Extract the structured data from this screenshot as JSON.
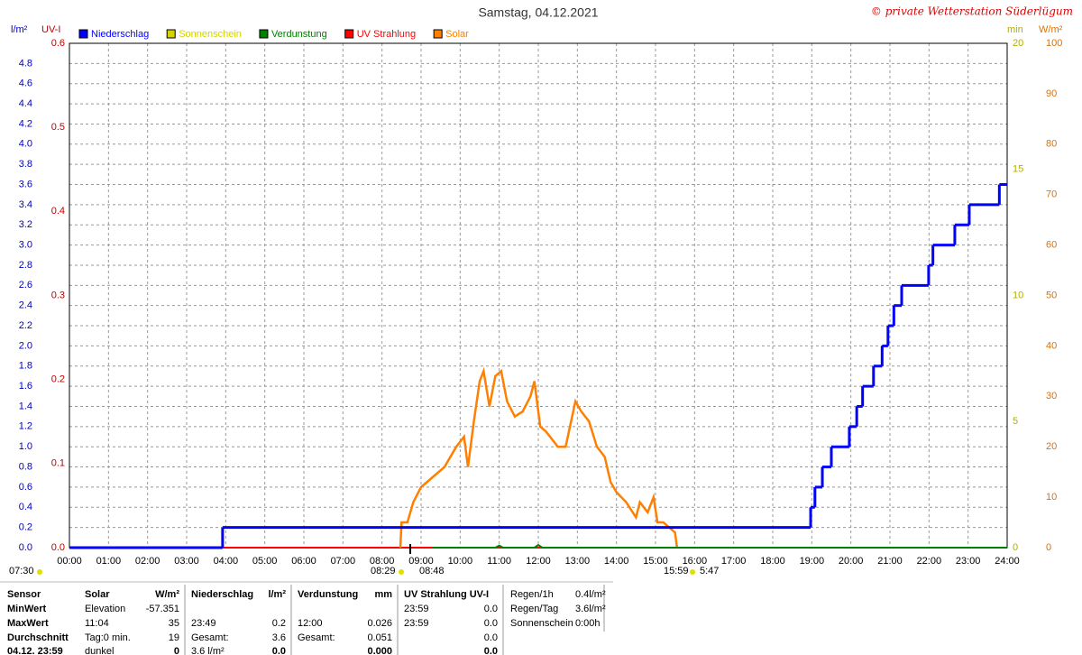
{
  "chart_data": {
    "type": "line",
    "title": "Samstag, 04.12.2021",
    "copyright": "© private Wetterstation Süderlügum",
    "xlim": [
      0,
      24
    ],
    "xticks": [
      {
        "value": 0,
        "label": "00:00"
      },
      {
        "value": 1,
        "label": "01:00"
      },
      {
        "value": 2,
        "label": "02:00"
      },
      {
        "value": 3,
        "label": "03:00"
      },
      {
        "value": 4,
        "label": "04:00"
      },
      {
        "value": 5,
        "label": "05:00"
      },
      {
        "value": 6,
        "label": "06:00"
      },
      {
        "value": 7,
        "label": "07:00"
      },
      {
        "value": 8,
        "label": "08:00"
      },
      {
        "value": 9,
        "label": "09:00"
      },
      {
        "value": 10,
        "label": "10:00"
      },
      {
        "value": 11,
        "label": "11:00"
      },
      {
        "value": 12,
        "label": "12:00"
      },
      {
        "value": 13,
        "label": "13:00"
      },
      {
        "value": 14,
        "label": "14:00"
      },
      {
        "value": 15,
        "label": "15:00"
      },
      {
        "value": 16,
        "label": "16:00"
      },
      {
        "value": 17,
        "label": "17:00"
      },
      {
        "value": 18,
        "label": "18:00"
      },
      {
        "value": 19,
        "label": "19:00"
      },
      {
        "value": 20,
        "label": "20:00"
      },
      {
        "value": 21,
        "label": "21:00"
      },
      {
        "value": 22,
        "label": "22:00"
      },
      {
        "value": 23,
        "label": "23:00"
      },
      {
        "value": 24,
        "label": "24:00"
      }
    ],
    "ylabel": "l/m²",
    "ylim": [
      0,
      5
    ],
    "yticks": [
      {
        "value": 0,
        "label": "0.0"
      },
      {
        "value": 0.2,
        "label": "0.2"
      },
      {
        "value": 0.4,
        "label": "0.4"
      },
      {
        "value": 0.6,
        "label": "0.6"
      },
      {
        "value": 0.8,
        "label": "0.8"
      },
      {
        "value": 1,
        "label": "1.0"
      },
      {
        "value": 1.2,
        "label": "1.2"
      },
      {
        "value": 1.4,
        "label": "1.4"
      },
      {
        "value": 1.6,
        "label": "1.6"
      },
      {
        "value": 1.8,
        "label": "1.8"
      },
      {
        "value": 2,
        "label": "2.0"
      },
      {
        "value": 2.2,
        "label": "2.2"
      },
      {
        "value": 2.4,
        "label": "2.4"
      },
      {
        "value": 2.6,
        "label": "2.6"
      },
      {
        "value": 2.8,
        "label": "2.8"
      },
      {
        "value": 3,
        "label": "3.0"
      },
      {
        "value": 3.2,
        "label": "3.2"
      },
      {
        "value": 3.4,
        "label": "3.4"
      },
      {
        "value": 3.6,
        "label": "3.6"
      },
      {
        "value": 3.8,
        "label": "3.8"
      },
      {
        "value": 4,
        "label": "4.0"
      },
      {
        "value": 4.2,
        "label": "4.2"
      },
      {
        "value": 4.4,
        "label": "4.4"
      },
      {
        "value": 4.6,
        "label": "4.6"
      },
      {
        "value": 4.8,
        "label": "4.8"
      }
    ],
    "uvlabel": "UV-I",
    "uvlim": [
      0,
      0.6
    ],
    "uvticks": [
      {
        "value": 0,
        "label": "0.0"
      },
      {
        "value": 0.1,
        "label": "0.1"
      },
      {
        "value": 0.2,
        "label": "0.2"
      },
      {
        "value": 0.3,
        "label": "0.3"
      },
      {
        "value": 0.4,
        "label": "0.4"
      },
      {
        "value": 0.5,
        "label": "0.5"
      },
      {
        "value": 0.6,
        "label": "0.6"
      }
    ],
    "minlabel": "min",
    "minlim": [
      0,
      20
    ],
    "minticks": [
      0,
      5,
      10,
      15,
      20
    ],
    "y2label": "W/m²",
    "y2lim": [
      0,
      100
    ],
    "y2ticks": [
      0,
      10,
      20,
      30,
      40,
      50,
      60,
      70,
      80,
      90,
      100
    ],
    "grid": true,
    "series": [
      {
        "name": "Niederschlag",
        "color": "#0000ff",
        "axis": "y",
        "step": true,
        "x": [
          0,
          3.92,
          18.97,
          19.08,
          19.27,
          19.5,
          19.96,
          20.15,
          20.3,
          20.58,
          20.8,
          20.95,
          21.1,
          21.3,
          21.99,
          22.1,
          22.66,
          23.03,
          23.8,
          24
        ],
        "values": [
          0,
          0.2,
          0.4,
          0.6,
          0.8,
          1.0,
          1.2,
          1.4,
          1.6,
          1.8,
          2.0,
          2.2,
          2.4,
          2.6,
          2.8,
          3.0,
          3.2,
          3.4,
          3.6,
          3.6
        ]
      },
      {
        "name": "Sonnenschein",
        "color": "#d4d400",
        "axis": "min",
        "x": [
          0,
          24
        ],
        "values": [
          0,
          0
        ]
      },
      {
        "name": "Verdunstung",
        "color": "#008000",
        "axis": "y",
        "x": [
          9.3,
          10.9,
          11.0,
          11.1,
          11.9,
          12.0,
          12.1,
          24
        ],
        "values": [
          0,
          0,
          0.02,
          0,
          0,
          0.026,
          0,
          0
        ]
      },
      {
        "name": "UV Strahlung",
        "color": "#ff0000",
        "axis": "uv",
        "x": [
          0,
          24
        ],
        "values": [
          0,
          0
        ]
      },
      {
        "name": "Solar",
        "color": "#ff8000",
        "axis": "y2",
        "x": [
          8.47,
          8.5,
          8.65,
          8.8,
          9.0,
          9.3,
          9.6,
          9.9,
          10.1,
          10.2,
          10.35,
          10.5,
          10.6,
          10.75,
          10.9,
          11.05,
          11.2,
          11.4,
          11.6,
          11.8,
          11.9,
          12.05,
          12.2,
          12.5,
          12.7,
          12.95,
          13.1,
          13.3,
          13.5,
          13.7,
          13.85,
          14.0,
          14.25,
          14.5,
          14.6,
          14.8,
          14.95,
          15.05,
          15.2,
          15.5,
          15.55
        ],
        "values": [
          0,
          5,
          5,
          9,
          12,
          14,
          16,
          20,
          22,
          16,
          25,
          33,
          35,
          28,
          34,
          35,
          29,
          26,
          27,
          30,
          33,
          24,
          23,
          20,
          20,
          29,
          27,
          25,
          20,
          18,
          13,
          11,
          9,
          6,
          9,
          7,
          10,
          5,
          5,
          3,
          0
        ]
      }
    ],
    "annotations": [
      "07:30",
      "08:29",
      "08:48",
      "15:59",
      "5:47"
    ]
  },
  "summary": {
    "row_headers": [
      "Sensor",
      "MinWert",
      "MaxWert",
      "Durchschnitt",
      "04.12. 23:59"
    ],
    "blocks": [
      {
        "header": "Solar",
        "unit": "W/m²",
        "labels": [
          "Elevation",
          "11:04",
          "Tag:0 min.",
          "dunkel"
        ],
        "values": [
          "-57.351",
          "35",
          "19",
          "0"
        ]
      },
      {
        "header": "Niederschlag",
        "unit": "l/m²",
        "labels": [
          null,
          "23:49",
          "Gesamt:",
          "3.6 l/m²"
        ],
        "values": [
          null,
          "0.2",
          "3.6",
          "0.0"
        ]
      },
      {
        "header": "Verdunstung",
        "unit": "mm",
        "labels": [
          null,
          "12:00",
          "Gesamt:",
          null
        ],
        "values": [
          null,
          "0.026",
          "0.051",
          "0.000"
        ]
      },
      {
        "header": "UV Strahlung UV-I",
        "unit": null,
        "labels": [
          "23:59",
          "23:59",
          null,
          null
        ],
        "values": [
          "0.0",
          "0.0",
          "0.0",
          "0.0"
        ]
      }
    ],
    "extra": {
      "labels": [
        "Regen/1h",
        "Regen/Tag",
        "Sonnenschein"
      ],
      "values": [
        "0.4l/m²",
        "3.6l/m²",
        "0:00h"
      ]
    }
  }
}
